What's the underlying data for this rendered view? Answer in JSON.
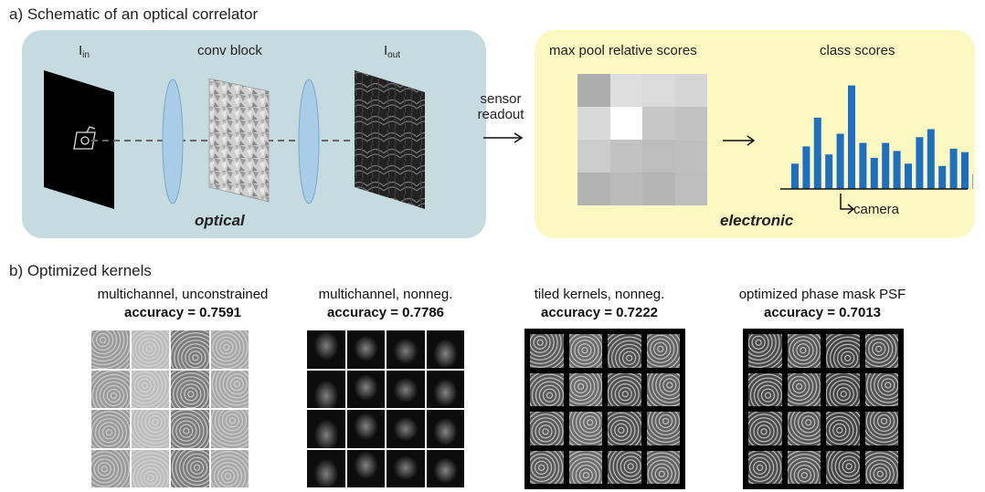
{
  "panel_a": {
    "title": "a) Schematic of an optical correlator",
    "optical": {
      "input_label_main": "I",
      "input_label_sub": "in",
      "conv_label": "conv block",
      "output_label_main": "I",
      "output_label_sub": "out",
      "region_label": "optical"
    },
    "readout": {
      "line1": "sensor",
      "line2": "readout"
    },
    "electronic": {
      "maxpool_label": "max pool relative scores",
      "maxpool_values": [
        [
          0.68,
          0.87,
          0.86,
          0.84
        ],
        [
          0.85,
          1.0,
          0.78,
          0.76
        ],
        [
          0.8,
          0.76,
          0.74,
          0.75
        ],
        [
          0.7,
          0.73,
          0.71,
          0.74
        ]
      ],
      "class_label": "class scores",
      "class_values": [
        0.22,
        0.37,
        0.62,
        0.3,
        0.48,
        0.9,
        0.4,
        0.27,
        0.4,
        0.33,
        0.22,
        0.45,
        0.52,
        0.2,
        0.35,
        0.32,
        0.13
      ],
      "camera_label": "camera",
      "region_label": "electronic"
    }
  },
  "panel_b": {
    "title": "b) Optimized kernels",
    "kernels": [
      {
        "title": "multichannel, unconstrained",
        "accuracy": "accuracy = 0.7591"
      },
      {
        "title": "multichannel, nonneg.",
        "accuracy": "accuracy = 0.7786"
      },
      {
        "title": "tiled kernels, nonneg.",
        "accuracy": "accuracy = 0.7222"
      },
      {
        "title": "optimized phase mask PSF",
        "accuracy": "accuracy = 0.7013"
      }
    ]
  },
  "colors": {
    "optical_bg": "#c5dbe0",
    "electronic_bg": "#fbf8c1",
    "bar_color": "#1f6fc1",
    "lens_color": "#a9cde8"
  }
}
